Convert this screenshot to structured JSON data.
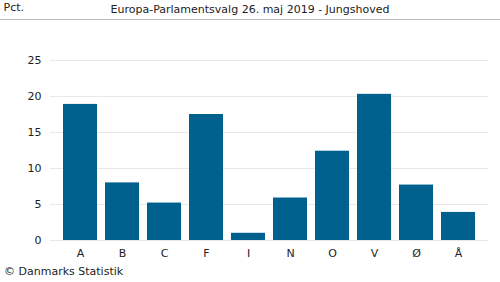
{
  "chart_data": {
    "type": "bar",
    "title": "Europa-Parlamentsvalg 26. maj 2019 - Jungshoved",
    "caption": "© Danmarks Statistik",
    "y_label": "Pct.",
    "categories": [
      "A",
      "B",
      "C",
      "F",
      "I",
      "N",
      "O",
      "V",
      "Ø",
      "Å"
    ],
    "values": [
      18.9,
      8.0,
      5.2,
      17.5,
      1.0,
      5.9,
      12.4,
      20.3,
      7.7,
      3.9
    ],
    "color": "#00618f",
    "ylim": [
      0,
      25
    ],
    "yticks": [
      0,
      5,
      10,
      15,
      20,
      25
    ],
    "grid": true
  }
}
